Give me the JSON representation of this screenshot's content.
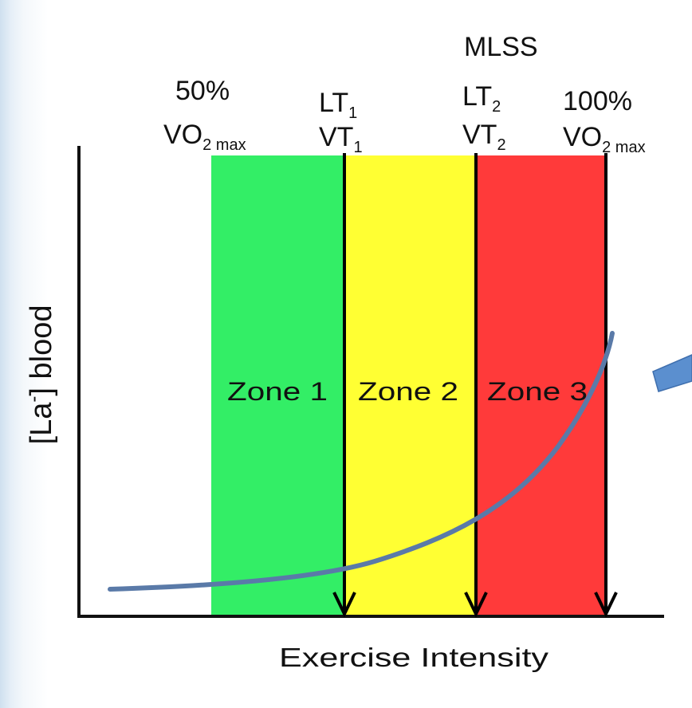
{
  "thresholds": {
    "vo2_50": {
      "top": "50%",
      "main": "VO",
      "sub": "2 max"
    },
    "lt1": {
      "main": "LT",
      "sub": "1"
    },
    "vt1": {
      "main": "VT",
      "sub": "1"
    },
    "mlss": {
      "text": "MLSS"
    },
    "lt2": {
      "main": "LT",
      "sub": "2"
    },
    "vt2": {
      "main": "VT",
      "sub": "2"
    },
    "vo2_100": {
      "top": "100%",
      "main": "VO",
      "sub": "2 max"
    }
  },
  "zones": [
    {
      "label": "Zone 1",
      "color": "#33ee66"
    },
    {
      "label": "Zone 2",
      "color": "#ffff33"
    },
    {
      "label": "Zone 3",
      "color": "#ff3a3a"
    }
  ],
  "axes": {
    "x_label": "Exercise Intensity",
    "y_label_prefix": "[La",
    "y_label_sup": "-",
    "y_label_suffix": "] blood"
  },
  "colors": {
    "curve": "#5a7aa8",
    "arrow_shape": "#5b8fcf"
  }
}
